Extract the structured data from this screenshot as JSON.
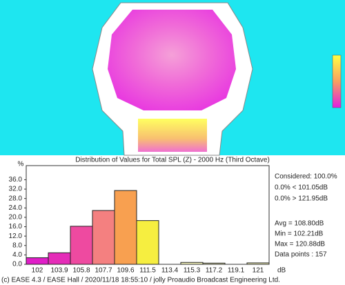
{
  "chart_data": {
    "type": "bar",
    "title": "Distribution of Values for Total SPL (Z)  - 2000 Hz (Third Octave)",
    "y_label": "%",
    "x_label": "dB",
    "categories": [
      "102",
      "103.9",
      "105.8",
      "107.7",
      "109.6",
      "111.5",
      "113.4",
      "115.3",
      "117.2",
      "119.1",
      "121"
    ],
    "values": [
      2.8,
      4.9,
      16.2,
      22.9,
      31.4,
      18.6,
      0,
      0.8,
      0.5,
      0,
      0.6
    ],
    "colors": [
      "#e01ec8",
      "#e52cb8",
      "#ee4aa0",
      "#f48080",
      "#f8a050",
      "#f6ee40",
      "#f8f070",
      "#fafac0",
      "#fafac0",
      "#fafac0",
      "#fafac0"
    ],
    "ylim": [
      0,
      42
    ],
    "yticks": [
      {
        "value": 0,
        "label": "0.0"
      },
      {
        "value": 4,
        "label": "4.0"
      },
      {
        "value": 8,
        "label": "8.0"
      },
      {
        "value": 12,
        "label": "12.0"
      },
      {
        "value": 16,
        "label": "16.0"
      },
      {
        "value": 20,
        "label": "20.0"
      },
      {
        "value": 24,
        "label": "24.0"
      },
      {
        "value": 28,
        "label": "28.0"
      },
      {
        "value": 32,
        "label": "32.0"
      },
      {
        "value": 36,
        "label": "36.0"
      }
    ],
    "stats": [
      "Considered: 100.0%",
      "0.0%  < 101.05dB",
      "0.0%  > 121.95dB",
      "Avg = 108.80dB",
      "Min = 102.21dB",
      "Max = 120.88dB",
      "Data points : 157"
    ],
    "footer": "(c) EASE 4.3  / EASE Hall  / 2020/11/18 18:55:10 / jolly Proaudio Broadcast Engineering Ltd."
  }
}
